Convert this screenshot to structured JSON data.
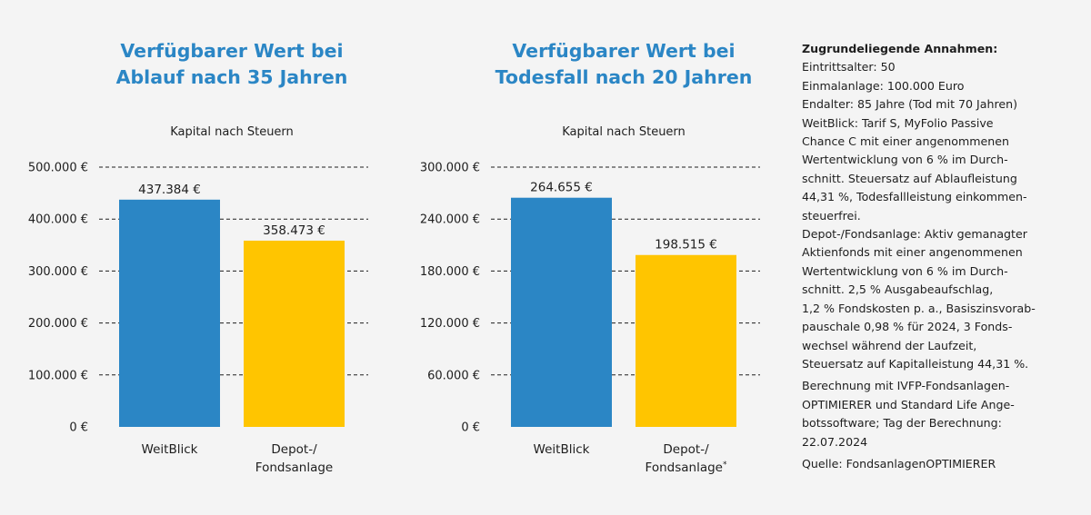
{
  "chart_data": [
    {
      "type": "bar",
      "title": "Verfügbarer Wert bei\nAblauf nach 35 Jahren",
      "subtitle": "Kapital nach Steuern",
      "categories": [
        "WeitBlick",
        "Depot-/\nFondsanlage"
      ],
      "values": [
        437384,
        358473
      ],
      "value_labels": [
        "437.384 €",
        "358.473 €"
      ],
      "colors": [
        "#2b86c5",
        "#ffc500"
      ],
      "ylim": [
        0,
        500000
      ],
      "yticks": [
        0,
        100000,
        200000,
        300000,
        400000,
        500000
      ],
      "ytick_labels": [
        "0 €",
        "100.000 €",
        "200.000 €",
        "300.000 €",
        "400.000 €",
        "500.000 €"
      ],
      "grid": "dashed horizontal"
    },
    {
      "type": "bar",
      "title": "Verfügbarer Wert bei\nTodesfall nach 20 Jahren",
      "subtitle": "Kapital nach Steuern",
      "categories": [
        "WeitBlick",
        "Depot-/\nFondsanlage*"
      ],
      "values": [
        264655,
        198515
      ],
      "value_labels": [
        "264.655 €",
        "198.515 €"
      ],
      "colors": [
        "#2b86c5",
        "#ffc500"
      ],
      "ylim": [
        0,
        300000
      ],
      "yticks": [
        0,
        60000,
        120000,
        180000,
        240000,
        300000
      ],
      "ytick_labels": [
        "0 €",
        "60.000 €",
        "120.000 €",
        "180.000 €",
        "240.000 €",
        "300.000 €"
      ],
      "grid": "dashed horizontal"
    }
  ],
  "notes": {
    "title": "Zugrundeliegende Annahmen:",
    "assumptions": "Eintrittsalter: 50\nEinmalanlage: 100.000 Euro\nEndalter: 85 Jahre (Tod mit 70 Jahren)\nWeitBlick: Tarif S, MyFolio Passive\nChance C mit einer angenommenen\nWertentwicklung von 6 % im Durch-\nschnitt. Steuersatz auf Ablaufleistung\n44,31 %, Todesfallleistung einkommen-\nsteuerfrei.\nDepot-/Fondsanlage: Aktiv gemanagter\nAktienfonds mit einer angenommenen\nWertentwicklung von 6 % im Durch-\nschnitt. 2,5 % Ausgabeaufschlag,\n1,2 % Fondskosten p. a., Basiszinsvorab-\npauschale 0,98 % für 2024, 3 Fonds-\nwechsel während der Laufzeit,\nSteuersatz auf Kapitalleistung 44,31 %.",
    "calculation": "Berechnung mit IVFP-Fondsanlagen-\nOPTIMIERER und Standard Life Ange-\nbotssoftware; Tag der Berechnung:\n22.07.2024",
    "source": "Quelle: FondsanlagenOPTIMIERER"
  }
}
